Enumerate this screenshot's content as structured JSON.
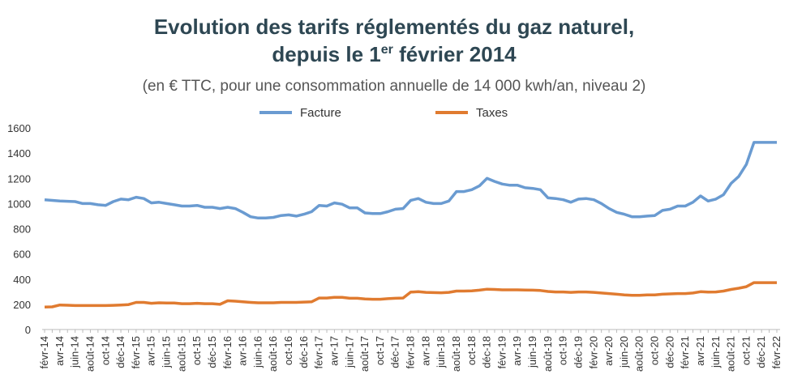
{
  "chart_data": {
    "type": "line",
    "title": [
      "Evolution des tarifs réglementés du gaz naturel,",
      "depuis le 1",
      "er",
      " février 2014"
    ],
    "subtitle": "(en € TTC, pour une consommation annuelle de 14 000 kwh/an, niveau 2)",
    "categories": [
      "févr-14",
      null,
      "avr-14",
      null,
      "juin-14",
      null,
      "août-14",
      null,
      "oct-14",
      null,
      "déc-14",
      null,
      "févr-15",
      null,
      "avr-15",
      null,
      "juin-15",
      null,
      "août-15",
      null,
      "oct-15",
      null,
      "déc-15",
      null,
      "févr-16",
      null,
      "avr-16",
      null,
      "juin-16",
      null,
      "août-16",
      null,
      "oct-16",
      null,
      "déc-16",
      null,
      "févr-17",
      null,
      "avr-17",
      null,
      "juin-17",
      null,
      "août-17",
      null,
      "oct-17",
      null,
      "déc-17",
      null,
      "févr-18",
      null,
      "avr-18",
      null,
      "juin-18",
      null,
      "août-18",
      null,
      "oct-18",
      null,
      "déc-18",
      null,
      "févr-19",
      null,
      "avr-19",
      null,
      "juin-19",
      null,
      "août-19",
      null,
      "oct-19",
      null,
      "déc-19",
      null,
      "févr-20",
      null,
      "avr-20",
      null,
      "juin-20",
      null,
      "août-20",
      null,
      "oct-20",
      null,
      "déc-20",
      null,
      "févr-21",
      null,
      "avr-21",
      null,
      "juin-21",
      null,
      "août-21",
      null,
      "oct-21",
      null,
      "déc-21",
      null,
      "févr-22"
    ],
    "series": [
      {
        "name": "Facture",
        "color": "#6a9bd1",
        "values": [
          1030,
          1025,
          1020,
          1018,
          1015,
          1000,
          1000,
          990,
          985,
          1015,
          1035,
          1030,
          1050,
          1040,
          1005,
          1010,
          1000,
          990,
          980,
          980,
          985,
          970,
          970,
          960,
          970,
          960,
          930,
          895,
          885,
          885,
          890,
          905,
          910,
          900,
          915,
          935,
          985,
          980,
          1005,
          995,
          965,
          965,
          925,
          920,
          920,
          935,
          955,
          960,
          1025,
          1040,
          1010,
          1000,
          1000,
          1020,
          1095,
          1095,
          1110,
          1140,
          1200,
          1175,
          1155,
          1145,
          1145,
          1125,
          1120,
          1110,
          1045,
          1040,
          1030,
          1010,
          1035,
          1040,
          1030,
          1000,
          960,
          930,
          915,
          895,
          895,
          900,
          905,
          945,
          955,
          980,
          980,
          1010,
          1060,
          1020,
          1035,
          1070,
          1160,
          1215,
          1310,
          1485,
          1485,
          1485,
          1485
        ]
      },
      {
        "name": "Taxes",
        "color": "#e07b30",
        "values": [
          178,
          180,
          195,
          193,
          190,
          190,
          190,
          190,
          190,
          192,
          195,
          198,
          215,
          215,
          208,
          212,
          210,
          210,
          205,
          205,
          208,
          205,
          205,
          200,
          228,
          225,
          220,
          215,
          212,
          212,
          212,
          215,
          215,
          215,
          218,
          220,
          250,
          250,
          255,
          255,
          248,
          248,
          242,
          240,
          240,
          245,
          248,
          250,
          297,
          300,
          295,
          293,
          292,
          295,
          305,
          305,
          307,
          312,
          320,
          318,
          315,
          315,
          315,
          313,
          312,
          310,
          302,
          298,
          298,
          295,
          298,
          298,
          295,
          290,
          285,
          280,
          275,
          272,
          272,
          275,
          275,
          280,
          283,
          285,
          285,
          290,
          300,
          297,
          298,
          305,
          318,
          328,
          340,
          372,
          372,
          372,
          372
        ]
      }
    ],
    "ylim": [
      0,
      1600
    ],
    "yticks": [
      0,
      200,
      400,
      600,
      800,
      1000,
      1200,
      1400,
      1600
    ],
    "grid": false
  }
}
